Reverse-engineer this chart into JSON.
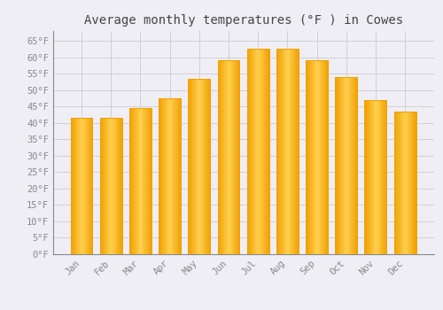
{
  "title": "Average monthly temperatures (°F ) in Cowes",
  "months": [
    "Jan",
    "Feb",
    "Mar",
    "Apr",
    "May",
    "Jun",
    "Jul",
    "Aug",
    "Sep",
    "Oct",
    "Nov",
    "Dec"
  ],
  "values": [
    41.5,
    41.5,
    44.5,
    47.5,
    53.5,
    59.0,
    62.5,
    62.5,
    59.0,
    54.0,
    47.0,
    43.5
  ],
  "bar_color_center": "#FFD050",
  "bar_color_edge": "#F0A000",
  "background_color": "#F0EEF5",
  "plot_bg_color": "#F0EEF5",
  "grid_color": "#CCCCCC",
  "spine_color": "#888888",
  "ylim": [
    0,
    68
  ],
  "yticks": [
    0,
    5,
    10,
    15,
    20,
    25,
    30,
    35,
    40,
    45,
    50,
    55,
    60,
    65
  ],
  "title_fontsize": 10,
  "tick_fontsize": 7.5,
  "tick_label_color": "#888888",
  "title_color": "#444444",
  "bar_width": 0.75
}
